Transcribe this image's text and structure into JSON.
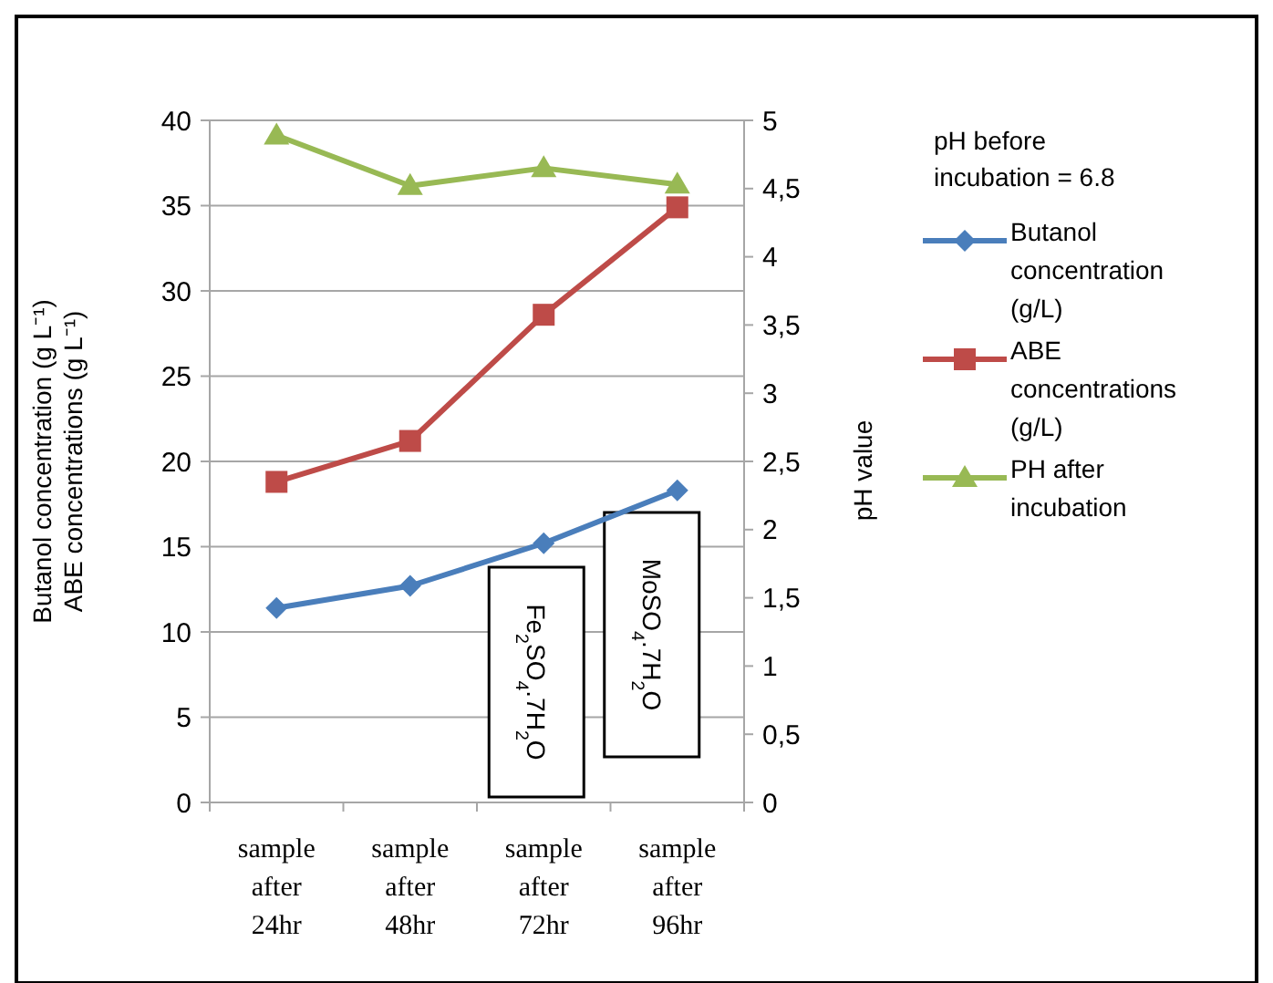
{
  "chart_data": {
    "type": "line",
    "ylabel": "Butanol concentration (g L⁻¹)\nABE concentrations (g L⁻¹)",
    "y2label": "pH value",
    "legend_title": "pH before incubation = 6.8",
    "categories": [
      "sample after 24hr",
      "sample after 48hr",
      "sample after 72hr",
      "sample after 96hr"
    ],
    "series": [
      {
        "name": "Butanol concentration (g/L)",
        "color": "#4a7ebb",
        "marker": "diamond",
        "values": [
          11.4,
          12.7,
          15.2,
          18.3
        ]
      },
      {
        "name": "ABE concentrations (g/L)",
        "color": "#be4b48",
        "marker": "square",
        "values": [
          18.8,
          21.2,
          28.6,
          34.9
        ]
      },
      {
        "name": "PH after incubation",
        "color": "#98b954",
        "marker": "triangle",
        "axis": "y2",
        "values": [
          4.89,
          4.52,
          4.65,
          4.53
        ]
      }
    ],
    "ylim": [
      0,
      40
    ],
    "yticks": [
      0,
      5,
      10,
      15,
      20,
      25,
      30,
      35,
      40
    ],
    "y2lim": [
      0,
      5
    ],
    "y2ticks": [
      0,
      {
        "value": 0.5,
        "label": "0,5"
      },
      1,
      {
        "value": 1.5,
        "label": "1,5"
      },
      2,
      {
        "value": 2.5,
        "label": "2,5"
      },
      3,
      {
        "value": 3.5,
        "label": "3,5"
      },
      4,
      {
        "value": 4.5,
        "label": "4,5"
      },
      5
    ],
    "grid": "y",
    "legend": "right",
    "annotations": [
      "Fe$_{2}$SO$_{4}$.7H$_{2}$O",
      "MoSO$_{4}$.7H$_{2}$O"
    ]
  }
}
